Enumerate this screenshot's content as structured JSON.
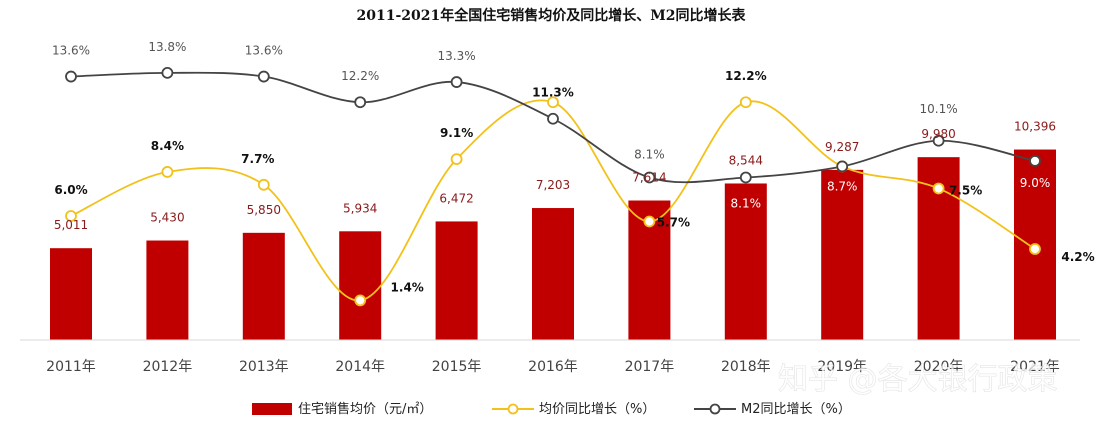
{
  "chart_data": {
    "type": "bar",
    "title": "2011-2021年全国住宅销售均价及同比增长、M2同比增长表",
    "categories": [
      "2011年",
      "2012年",
      "2013年",
      "2014年",
      "2015年",
      "2016年",
      "2017年",
      "2018年",
      "2019年",
      "2020年",
      "2021年"
    ],
    "series": [
      {
        "name": "住宅销售均价（元/㎡）",
        "type": "bar",
        "values": [
          5011,
          5430,
          5850,
          5934,
          6472,
          7203,
          7614,
          8544,
          9287,
          9980,
          10396
        ],
        "labels": [
          "5,011",
          "5,430",
          "5,850",
          "5,934",
          "6,472",
          "7,203",
          "7,614",
          "8,544",
          "9,287",
          "9,980",
          "10,396"
        ],
        "color": "#c00000"
      },
      {
        "name": "均价同比增长（%）",
        "type": "line",
        "values": [
          6.0,
          8.4,
          7.7,
          1.4,
          9.1,
          12.2,
          5.7,
          12.2,
          8.7,
          7.5,
          4.2
        ],
        "labels": [
          "6.0%",
          "8.4%",
          "7.7%",
          "1.4%",
          "9.1%",
          "",
          "5.7%",
          "12.2%",
          "8.7%",
          "7.5%",
          "4.2%"
        ],
        "color": "#f2c21a"
      },
      {
        "name": "M2同比增长（%）",
        "type": "line",
        "values": [
          13.6,
          13.8,
          13.6,
          12.2,
          13.3,
          11.3,
          8.1,
          8.1,
          8.7,
          10.1,
          9.0
        ],
        "labels": [
          "13.6%",
          "13.8%",
          "13.6%",
          "12.2%",
          "13.3%",
          "11.3%",
          "8.1%",
          "8.1%",
          "",
          "10.1%",
          "9.0%"
        ],
        "color": "#444444"
      }
    ],
    "legend": {
      "position": "bottom"
    },
    "grid": false
  },
  "watermark": {
    "text": "知乎 @各大银行政策"
  }
}
